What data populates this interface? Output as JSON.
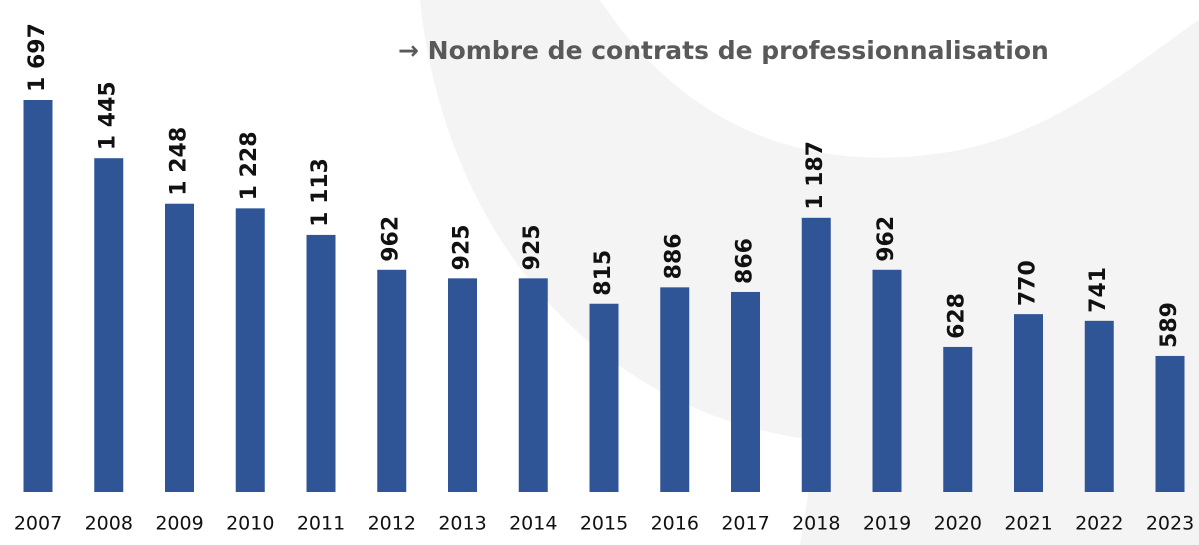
{
  "chart_data": {
    "type": "bar",
    "title": "→ Nombre de contrats de professionnalisation",
    "categories": [
      "2007",
      "2008",
      "2009",
      "2010",
      "2011",
      "2012",
      "2013",
      "2014",
      "2015",
      "2016",
      "2017",
      "2018",
      "2019",
      "2020",
      "2021",
      "2022",
      "2023"
    ],
    "values": [
      1697,
      1445,
      1248,
      1228,
      1113,
      962,
      925,
      925,
      815,
      886,
      866,
      1187,
      962,
      628,
      770,
      741,
      589
    ],
    "value_labels": [
      "1 697",
      "1 445",
      "1 248",
      "1 228",
      "1 113",
      "962",
      "925",
      "925",
      "815",
      "886",
      "866",
      "1 187",
      "962",
      "628",
      "770",
      "741",
      "589"
    ],
    "color": "#2f5597"
  }
}
